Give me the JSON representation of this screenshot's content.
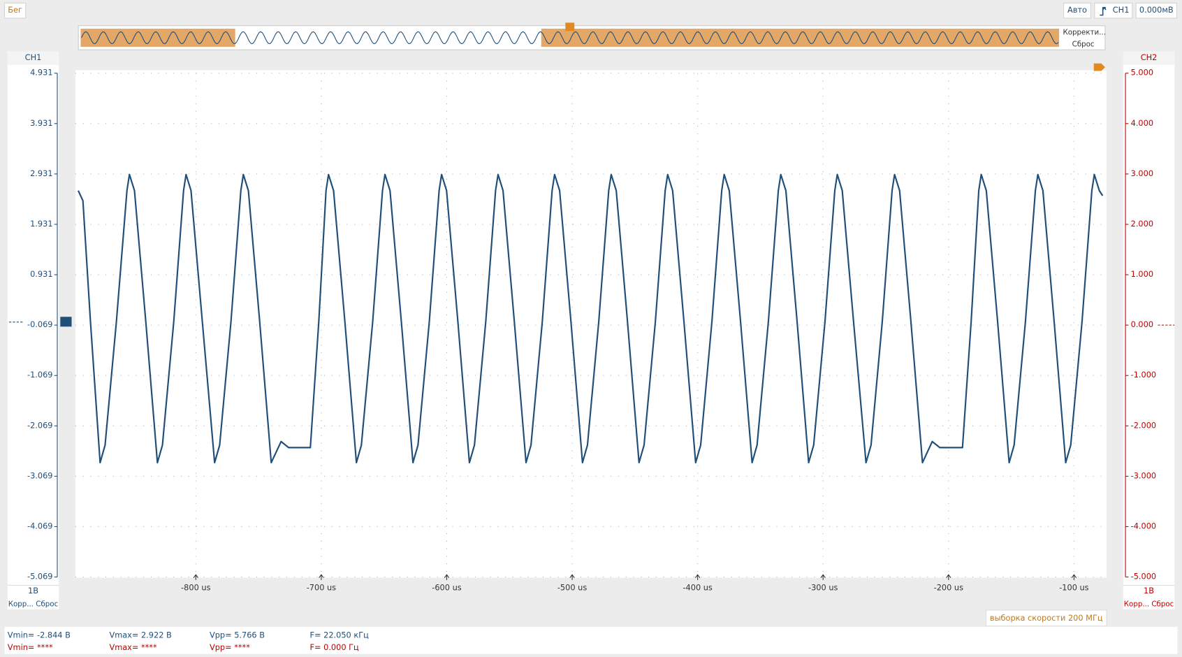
{
  "toolbar": {
    "run_state": "Бег",
    "trigger_mode": "Авто",
    "trigger_source": "CH1",
    "trigger_level": "0.000мВ"
  },
  "overview": {
    "adjust": "Корректи...",
    "reset": "Сброс"
  },
  "panels": {
    "left": {
      "scale": "1В",
      "controls": "Корр... Сброс"
    },
    "right": {
      "scale": "1В",
      "controls": "Корр... Сброс"
    }
  },
  "sample_rate": "выборка скорости 200 МГц",
  "measurements": {
    "ch1": [
      "Vmin= -2.844 В",
      "Vmax= 2.922 В",
      "Vpp= 5.766 В",
      "F= 22.050 кГц"
    ],
    "ch2": [
      "Vmin= ****",
      "Vmax= ****",
      "Vpp= ****",
      "F= 0.000 Гц"
    ]
  },
  "chart_data": {
    "type": "line",
    "y2label": "CH2",
    "xlim": [
      -896,
      -74
    ],
    "xticks": [
      {
        "value": -800,
        "label": "-800 us"
      },
      {
        "value": -700,
        "label": "-700 us"
      },
      {
        "value": -600,
        "label": "-600 us"
      },
      {
        "value": -500,
        "label": "-500 us"
      },
      {
        "value": -400,
        "label": "-400 us"
      },
      {
        "value": -300,
        "label": "-300 us"
      },
      {
        "value": -200,
        "label": "-200 us"
      },
      {
        "value": -100,
        "label": "-100 us"
      }
    ],
    "ylim": [
      -5.069,
      4.931
    ],
    "yticks": [
      -5.069,
      -4.069,
      -3.069,
      -2.069,
      -1.069,
      -0.069,
      0.931,
      1.931,
      2.931,
      3.931,
      4.931
    ],
    "y2lim": [
      -5,
      5
    ],
    "y2ticks": [
      {
        "value": -5,
        "label": "-5.000"
      },
      {
        "value": -4,
        "label": "-4.000"
      },
      {
        "value": -3,
        "label": "-3.000"
      },
      {
        "value": -2,
        "label": "-2.000"
      },
      {
        "value": -1,
        "label": "-1.000"
      },
      {
        "value": 0,
        "label": "0.000"
      },
      {
        "value": 1,
        "label": "1.000"
      },
      {
        "value": 2,
        "label": "2.000"
      },
      {
        "value": 3,
        "label": "3.000"
      },
      {
        "value": 4,
        "label": "4.000"
      },
      {
        "value": 5,
        "label": "5.000"
      }
    ],
    "grid": true,
    "x": [
      -893.7,
      -890,
      -884,
      -876.3,
      -872.3,
      -863.3,
      -854.9,
      -852.9,
      -848.9,
      -839.9,
      -830.6,
      -826.6,
      -817.6,
      -809.8,
      -807.8,
      -803.8,
      -794.8,
      -785.0,
      -781.0,
      -772.0,
      -764.1,
      -762.1,
      -758.1,
      -749.1,
      -739.9,
      -732,
      -726,
      -708.7,
      -702,
      -696.2,
      -694.2,
      -690.2,
      -681.2,
      -672.0,
      -668,
      -659,
      -651.2,
      -649.2,
      -645.2,
      -636.2,
      -626.9,
      -622.9,
      -613.9,
      -606.1,
      -604.1,
      -600.1,
      -591.1,
      -581.9,
      -577.9,
      -568.9,
      -561.1,
      -559.1,
      -555.1,
      -546.1,
      -536.8,
      -532.8,
      -523.8,
      -516,
      -514,
      -510,
      -501,
      -491.8,
      -487.8,
      -478.8,
      -470.9,
      -468.9,
      -464.9,
      -455.9,
      -446.7,
      -442.7,
      -433.7,
      -425.9,
      -423.9,
      -419.9,
      -410.9,
      -401.6,
      -397.6,
      -388.6,
      -380.8,
      -378.8,
      -374.8,
      -365.8,
      -356.6,
      -352.6,
      -343.6,
      -335.7,
      -333.7,
      -329.7,
      -320.7,
      -311.5,
      -307.5,
      -298.5,
      -290.7,
      -288.7,
      -284.7,
      -275.7,
      -265.8,
      -261.8,
      -252.8,
      -245,
      -243,
      -239,
      -230,
      -220.8,
      -213,
      -207,
      -188.9,
      -182,
      -175.9,
      -173.9,
      -169.9,
      -160.9,
      -151.7,
      -147.7,
      -138.7,
      -130.8,
      -128.8,
      -124.8,
      -115.8,
      -106.6,
      -102.6,
      -93.6,
      -85.8,
      -83.8,
      -79.8,
      -77.2
    ],
    "series": [
      {
        "name": "CH1",
        "color": "#1f4e79",
        "values": [
          2.6,
          2.4,
          0,
          -2.8,
          -2.45,
          0,
          2.6,
          2.92,
          2.6,
          0,
          -2.8,
          -2.45,
          0,
          2.6,
          2.92,
          2.6,
          0,
          -2.8,
          -2.45,
          0,
          2.6,
          2.92,
          2.6,
          0,
          -2.8,
          -2.38,
          -2.5,
          -2.5,
          0,
          2.6,
          2.92,
          2.6,
          0,
          -2.8,
          -2.45,
          0,
          2.6,
          2.92,
          2.6,
          0,
          -2.8,
          -2.45,
          0,
          2.6,
          2.92,
          2.6,
          0,
          -2.8,
          -2.45,
          0,
          2.6,
          2.92,
          2.6,
          0,
          -2.8,
          -2.45,
          0,
          2.6,
          2.92,
          2.6,
          0,
          -2.8,
          -2.45,
          0,
          2.6,
          2.92,
          2.6,
          0,
          -2.8,
          -2.45,
          0,
          2.6,
          2.92,
          2.6,
          0,
          -2.8,
          -2.45,
          0,
          2.6,
          2.92,
          2.6,
          0,
          -2.8,
          -2.45,
          0,
          2.6,
          2.92,
          2.6,
          0,
          -2.8,
          -2.45,
          0,
          2.6,
          2.92,
          2.6,
          0,
          -2.8,
          -2.45,
          0,
          2.6,
          2.92,
          2.6,
          0,
          -2.8,
          -2.38,
          -2.5,
          -2.5,
          0,
          2.6,
          2.92,
          2.6,
          0,
          -2.8,
          -2.45,
          0,
          2.6,
          2.92,
          2.6,
          0,
          -2.8,
          -2.45,
          0,
          2.6,
          2.92,
          2.6,
          2.5
        ]
      }
    ]
  }
}
